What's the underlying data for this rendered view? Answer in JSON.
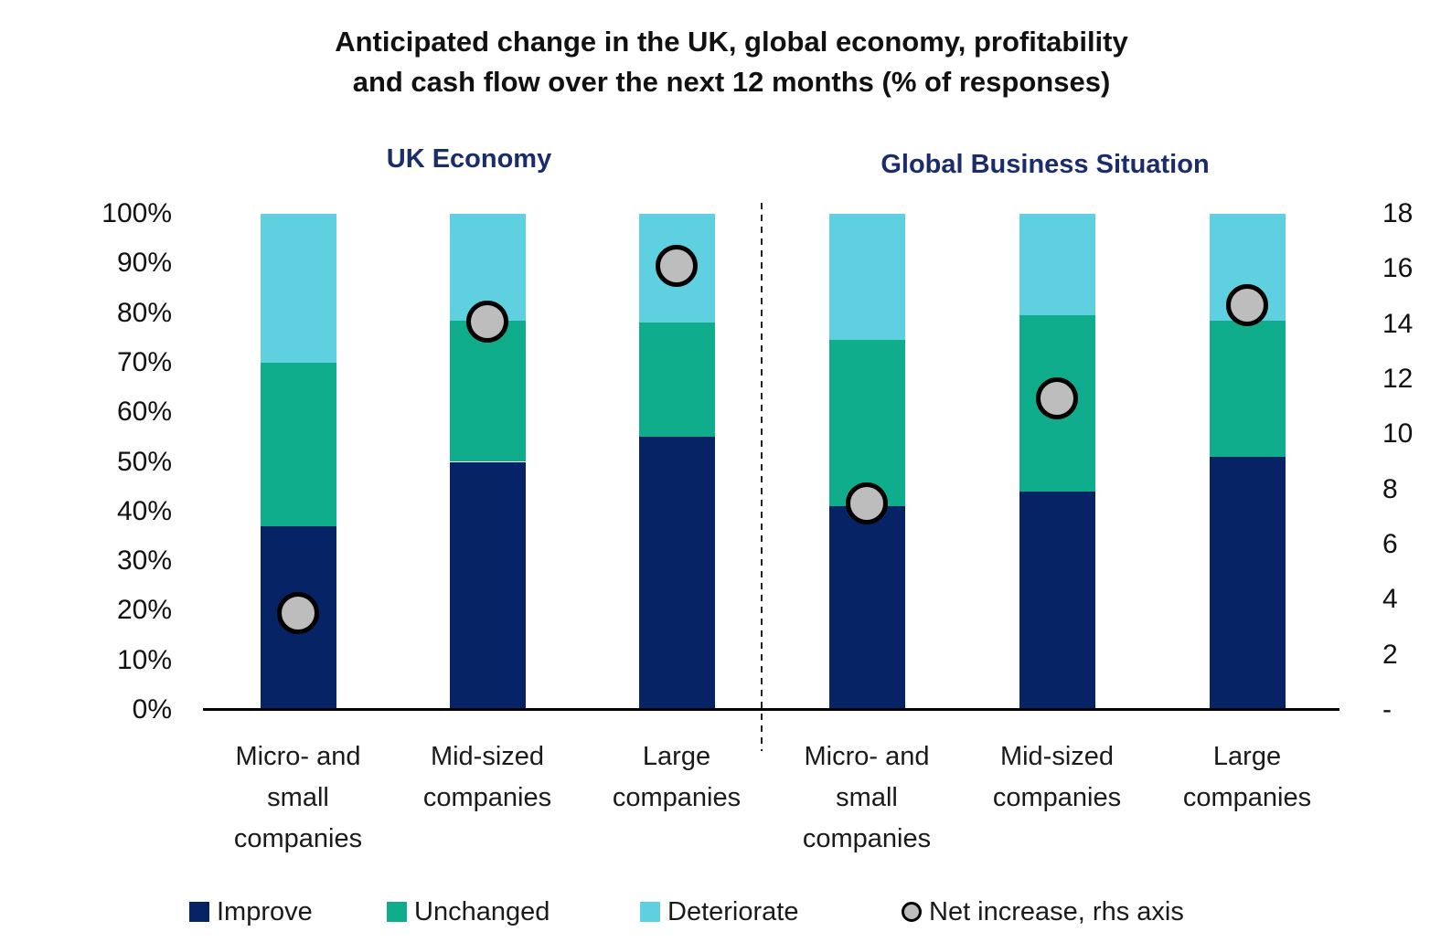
{
  "title": {
    "line1": "Anticipated change in the UK, global economy, profitability",
    "line2": "and cash flow over the next 12 months (% of responses)"
  },
  "panel_titles": {
    "left": "UK Economy",
    "right": "Global Business Situation"
  },
  "legend": {
    "improve": "Improve",
    "unchanged": "Unchanged",
    "deteriorate": "Deteriorate",
    "net_increase": "Net increase, rhs axis"
  },
  "colors": {
    "improve": "#062365",
    "unchanged": "#0FAD8B",
    "deteriorate": "#5FD0DF",
    "marker_fill": "#BDBDBD",
    "marker_stroke": "#000000",
    "heading_navy": "#1A2C6B",
    "axis_line": "#000000"
  },
  "chart_data": {
    "type": "bar",
    "subtype": "100%-stacked columns with scatter overlay on secondary axis",
    "panels": [
      "UK Economy",
      "Global Business Situation"
    ],
    "categories": [
      "Micro- and small companies",
      "Mid-sized companies",
      "Large companies",
      "Micro- and small companies",
      "Mid-sized companies",
      "Large companies"
    ],
    "category_panel_index": [
      0,
      0,
      0,
      1,
      1,
      1
    ],
    "series": [
      {
        "name": "Improve",
        "color": "#062365",
        "values": [
          37,
          50,
          55,
          41,
          44,
          51
        ]
      },
      {
        "name": "Unchanged",
        "color": "#0FAD8B",
        "values": [
          33,
          28.5,
          23,
          33.5,
          35.5,
          27.5
        ]
      },
      {
        "name": "Deteriorate",
        "color": "#5FD0DF",
        "values": [
          30,
          21.5,
          22,
          25.5,
          20.5,
          21.5
        ]
      }
    ],
    "scatter_series": {
      "name": "Net increase, rhs axis",
      "axis": "right",
      "fill": "#BDBDBD",
      "stroke": "#000000",
      "values": [
        3.5,
        14.1,
        16.1,
        7.5,
        11.3,
        14.7
      ]
    },
    "left_axis": {
      "min": 0,
      "max": 100,
      "tick_step": 10,
      "ticks": [
        "100%",
        "90%",
        "80%",
        "70%",
        "60%",
        "50%",
        "40%",
        "30%",
        "20%",
        "10%",
        "0%"
      ]
    },
    "right_axis": {
      "min": 0,
      "max": 18,
      "tick_step": 2,
      "ticks": [
        "18",
        "16",
        "14",
        "12",
        "10",
        "8",
        "6",
        "4",
        "2",
        "-"
      ]
    },
    "grid": false,
    "legend_position": "bottom"
  }
}
